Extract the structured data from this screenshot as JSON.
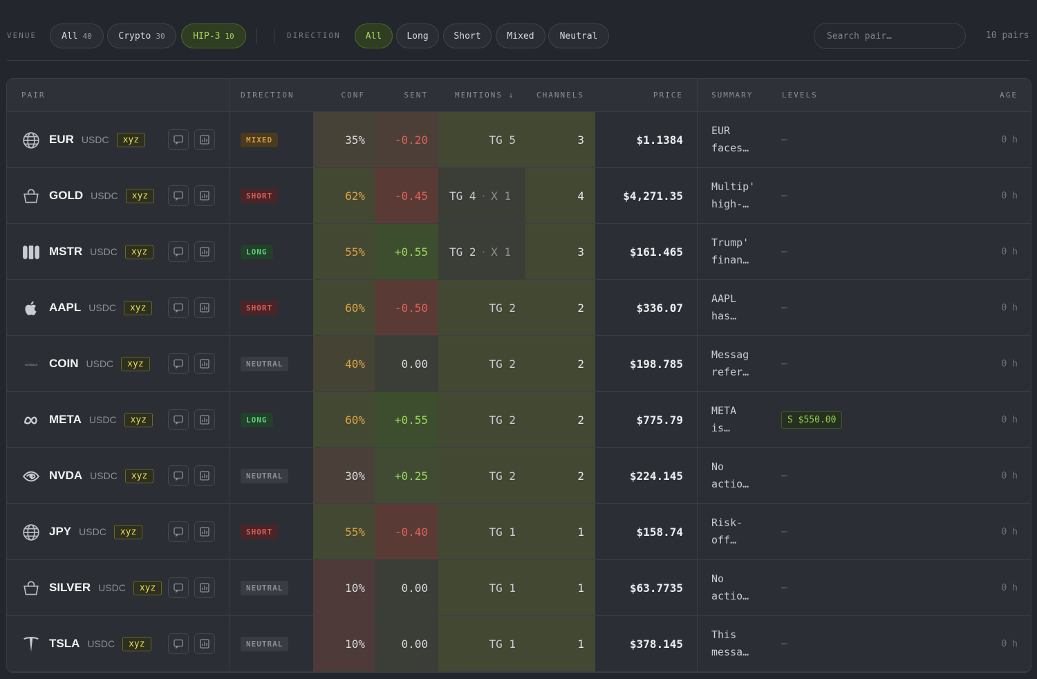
{
  "filters": {
    "venue_label": "VENUE",
    "venue_chips": [
      {
        "label": "All",
        "count": "40",
        "active": false
      },
      {
        "label": "Crypto",
        "count": "30",
        "active": false
      },
      {
        "label": "HIP-3",
        "count": "10",
        "active": true
      }
    ],
    "direction_label": "DIRECTION",
    "direction_chips": [
      {
        "label": "All",
        "active": true
      },
      {
        "label": "Long",
        "active": false
      },
      {
        "label": "Short",
        "active": false
      },
      {
        "label": "Mixed",
        "active": false
      },
      {
        "label": "Neutral",
        "active": false
      }
    ],
    "search_placeholder": "Search pair…",
    "pair_count": "10 pairs"
  },
  "columns": {
    "pair": "PAIR",
    "direction": "DIRECTION",
    "conf": "CONF",
    "sent": "SENT",
    "mentions": "MENTIONS ↓",
    "channels": "CHANNELS",
    "price": "PRICE",
    "summary": "SUMMARY",
    "levels": "LEVELS",
    "age": "AGE"
  },
  "colors": {
    "accent_green": "#a8d65b",
    "long": "#5fd37a",
    "short": "#e05a5a",
    "mixed": "#d59a3c",
    "conf_text": "#d9a441",
    "venue_tag": "#e6e04a"
  },
  "rows": [
    {
      "icon": "globe-icon",
      "ticker": "EUR",
      "quote": "USDC",
      "venue": "xyz",
      "direction": "MIXED",
      "dir_class": "mixed",
      "conf": "35%",
      "conf_value": 0.35,
      "sent": "-0.20",
      "sent_value": -0.2,
      "mentions_tg": "TG 5",
      "mentions_x": "",
      "channels": "3",
      "price": "$1.1384",
      "summary": "EUR\nfaces…",
      "level": "",
      "level_dash": "–",
      "age": "0 h"
    },
    {
      "icon": "shopping-bag-icon",
      "ticker": "GOLD",
      "quote": "USDC",
      "venue": "xyz",
      "direction": "SHORT",
      "dir_class": "short",
      "conf": "62%",
      "conf_value": 0.62,
      "sent": "-0.45",
      "sent_value": -0.45,
      "mentions_tg": "TG 4",
      "mentions_x": "X 1",
      "channels": "4",
      "price": "$4,271.35",
      "summary": "Multip'\nhigh-…",
      "level": "",
      "level_dash": "–",
      "age": "0 h"
    },
    {
      "icon": "microstrategy-icon",
      "ticker": "MSTR",
      "quote": "USDC",
      "venue": "xyz",
      "direction": "LONG",
      "dir_class": "long",
      "conf": "55%",
      "conf_value": 0.55,
      "sent": "+0.55",
      "sent_value": 0.55,
      "mentions_tg": "TG 2",
      "mentions_x": "X 1",
      "channels": "3",
      "price": "$161.465",
      "summary": "Trump'\nfinan…",
      "level": "",
      "level_dash": "–",
      "age": "0 h"
    },
    {
      "icon": "apple-icon",
      "ticker": "AAPL",
      "quote": "USDC",
      "venue": "xyz",
      "direction": "SHORT",
      "dir_class": "short",
      "conf": "60%",
      "conf_value": 0.6,
      "sent": "-0.50",
      "sent_value": -0.5,
      "mentions_tg": "TG 2",
      "mentions_x": "",
      "channels": "2",
      "price": "$336.07",
      "summary": "AAPL\nhas…",
      "level": "",
      "level_dash": "–",
      "age": "0 h"
    },
    {
      "icon": "coinbase-icon",
      "icon_text": "coinbase",
      "ticker": "COIN",
      "quote": "USDC",
      "venue": "xyz",
      "direction": "NEUTRAL",
      "dir_class": "neutral",
      "conf": "40%",
      "conf_value": 0.4,
      "sent": "0.00",
      "sent_value": 0.0,
      "mentions_tg": "TG 2",
      "mentions_x": "",
      "channels": "2",
      "price": "$198.785",
      "summary": "Messag\nrefer…",
      "level": "",
      "level_dash": "–",
      "age": "0 h"
    },
    {
      "icon": "meta-icon",
      "ticker": "META",
      "quote": "USDC",
      "venue": "xyz",
      "direction": "LONG",
      "dir_class": "long",
      "conf": "60%",
      "conf_value": 0.6,
      "sent": "+0.55",
      "sent_value": 0.55,
      "mentions_tg": "TG 2",
      "mentions_x": "",
      "channels": "2",
      "price": "$775.79",
      "summary": "META\nis…",
      "level": "S $550.00",
      "level_dash": "",
      "age": "0 h"
    },
    {
      "icon": "nvidia-icon",
      "ticker": "NVDA",
      "quote": "USDC",
      "venue": "xyz",
      "direction": "NEUTRAL",
      "dir_class": "neutral",
      "conf": "30%",
      "conf_value": 0.3,
      "sent": "+0.25",
      "sent_value": 0.25,
      "mentions_tg": "TG 2",
      "mentions_x": "",
      "channels": "2",
      "price": "$224.145",
      "summary": "No\nactio…",
      "level": "",
      "level_dash": "–",
      "age": "0 h"
    },
    {
      "icon": "globe-icon",
      "ticker": "JPY",
      "quote": "USDC",
      "venue": "xyz",
      "direction": "SHORT",
      "dir_class": "short",
      "conf": "55%",
      "conf_value": 0.55,
      "sent": "-0.40",
      "sent_value": -0.4,
      "mentions_tg": "TG 1",
      "mentions_x": "",
      "channels": "1",
      "price": "$158.74",
      "summary": "Risk-\noff…",
      "level": "",
      "level_dash": "–",
      "age": "0 h"
    },
    {
      "icon": "shopping-bag-icon",
      "ticker": "SILVER",
      "quote": "USDC",
      "venue": "xyz",
      "direction": "NEUTRAL",
      "dir_class": "neutral",
      "conf": "10%",
      "conf_value": 0.1,
      "sent": "0.00",
      "sent_value": 0.0,
      "mentions_tg": "TG 1",
      "mentions_x": "",
      "channels": "1",
      "price": "$63.7735",
      "summary": "No\nactio…",
      "level": "",
      "level_dash": "–",
      "age": "0 h"
    },
    {
      "icon": "tesla-icon",
      "ticker": "TSLA",
      "quote": "USDC",
      "venue": "xyz",
      "direction": "NEUTRAL",
      "dir_class": "neutral",
      "conf": "10%",
      "conf_value": 0.1,
      "sent": "0.00",
      "sent_value": 0.0,
      "mentions_tg": "TG 1",
      "mentions_x": "",
      "channels": "1",
      "price": "$378.145",
      "summary": "This\nmessa…",
      "level": "",
      "level_dash": "–",
      "age": "0 h"
    }
  ]
}
